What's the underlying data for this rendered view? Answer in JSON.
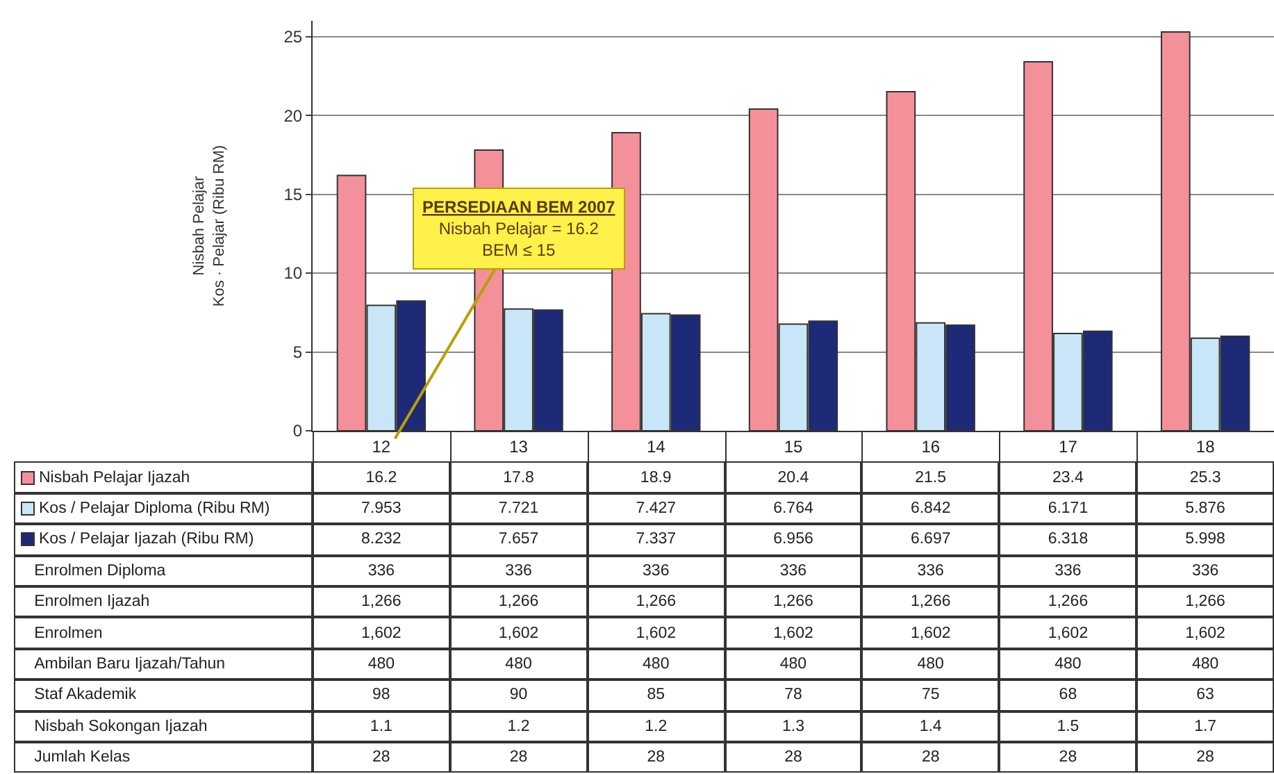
{
  "chart_data": {
    "type": "bar",
    "ylabel": "Nisbah Pelajar\nKos · Pelajar (Ribu RM)",
    "categories": [
      "12",
      "13",
      "14",
      "15",
      "16",
      "17",
      "18"
    ],
    "series": [
      {
        "name": "Nisbah Pelajar Ijazah",
        "color": "#f4909a",
        "values": [
          16.2,
          17.8,
          18.9,
          20.4,
          21.5,
          23.4,
          25.3
        ]
      },
      {
        "name": "Kos / Pelajar Diploma (Ribu RM)",
        "color": "#c8e6f8",
        "values": [
          7.953,
          7.721,
          7.427,
          6.764,
          6.842,
          6.171,
          5.876
        ]
      },
      {
        "name": "Kos / Pelajar Ijazah (Ribu RM)",
        "color": "#1c2a78",
        "values": [
          8.232,
          7.657,
          7.337,
          6.956,
          6.697,
          6.318,
          5.998
        ]
      }
    ],
    "ylim": [
      0,
      26
    ],
    "yticks": [
      0,
      5,
      10,
      15,
      20,
      25
    ],
    "grid": "y",
    "data_labels": true,
    "legend": "bottom left",
    "annotations": [
      "PERSEDIAAN BEM 2007\nNisbah Pelajar = 16.2\nBEM ≤ 15",
      "Enrolmen Diploma",
      "336",
      "336",
      "336",
      "336",
      "336",
      "336",
      "336",
      "Enrolmen Ijazah",
      "1,266",
      "1,266",
      "1,266",
      "1,266",
      "1,266",
      "1,266",
      "1,266",
      "Enrolmen",
      "1,602",
      "1,602",
      "1,602",
      "1,602",
      "1,602",
      "1,602",
      "1,602",
      "Ambilan Baru Ijazah/Tahun",
      "480",
      "480",
      "480",
      "480",
      "480",
      "480",
      "480",
      "Staf Akademik",
      "98",
      "90",
      "85",
      "78",
      "75",
      "68",
      "63",
      "Nisbah Sokongan Ijazah",
      "1.1",
      "1.2",
      "1.2",
      "1.3",
      "1.4",
      "1.5",
      "1.7",
      "Jumlah Kelas",
      "28",
      "28",
      "28",
      "28",
      "28",
      "28",
      "28"
    ]
  }
}
